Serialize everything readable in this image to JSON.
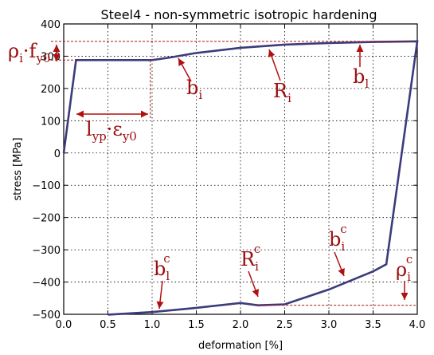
{
  "chart_data": {
    "type": "line",
    "title": "Steel4 - non-symmetric isotropic hardening",
    "xlabel": "deformation [%]",
    "ylabel": "stress [MPa]",
    "xlim": [
      0.0,
      4.0
    ],
    "ylim": [
      -500,
      400
    ],
    "xticks": [
      "0.0",
      "0.5",
      "1.0",
      "1.5",
      "2.0",
      "2.5",
      "3.0",
      "3.5",
      "4.0"
    ],
    "yticks": [
      "−500",
      "−400",
      "−300",
      "−200",
      "−100",
      "0",
      "100",
      "200",
      "300",
      "400"
    ],
    "grid": true,
    "series": [
      {
        "color": "#3c3b7c",
        "x": [
          0.0,
          0.14,
          0.5,
          1.0,
          1.2,
          1.5,
          2.0,
          2.5,
          3.0,
          3.5,
          4.0,
          3.65,
          3.5,
          3.0,
          2.5,
          2.2,
          2.0,
          1.5,
          1.0,
          0.5
        ],
        "y": [
          0,
          288,
          288,
          288,
          296,
          310,
          326,
          336,
          341,
          344,
          346,
          -345,
          -367,
          -423,
          -469,
          -472,
          -465,
          -480,
          -493,
          -501
        ]
      }
    ],
    "reference_lines": {
      "rho_ft_level": 346,
      "rho_fc_level": -472,
      "lyp_x_range": [
        0.14,
        0.98
      ]
    }
  },
  "annotations": {
    "rho_i_f": {
      "main1": "ρ",
      "sub1": "i",
      "dot": "·f",
      "sub2": "y0"
    },
    "l_yp": {
      "main1": "l",
      "sub1": "yp",
      "dot": "·ε",
      "sub2": "y0"
    },
    "b_i": {
      "main": "b",
      "sub": "i"
    },
    "R_i": {
      "main": "R",
      "sub": "i"
    },
    "b_l": {
      "main": "b",
      "sub": "l"
    },
    "b_l_c": {
      "main": "b",
      "sub": "l",
      "sup": "c"
    },
    "R_i_c": {
      "main": "R",
      "sub": "i",
      "sup": "c"
    },
    "b_i_c": {
      "main": "b",
      "sub": "i",
      "sup": "c"
    },
    "rho_i_c": {
      "main": "ρ",
      "sub": "i",
      "sup": "c"
    }
  }
}
